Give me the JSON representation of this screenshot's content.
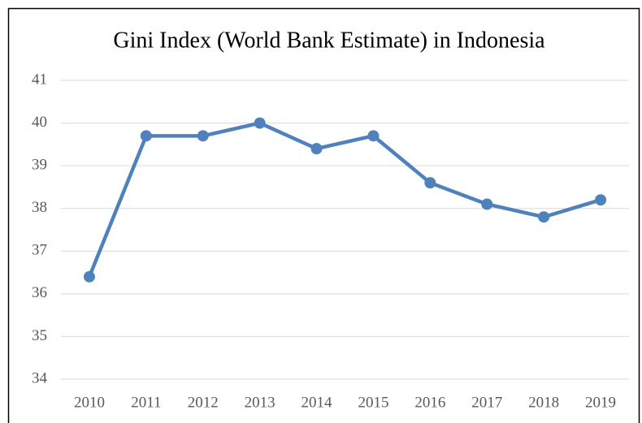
{
  "chart_data": {
    "type": "line",
    "title": "Gini Index (World Bank Estimate) in Indonesia",
    "categories": [
      "2010",
      "2011",
      "2012",
      "2013",
      "2014",
      "2015",
      "2016",
      "2017",
      "2018",
      "2019"
    ],
    "series": [
      {
        "name": "Gini Index",
        "color": "#4f81bd",
        "values": [
          36.4,
          39.7,
          39.7,
          40.0,
          39.4,
          39.7,
          38.6,
          38.1,
          37.8,
          38.2
        ]
      }
    ],
    "ylim": [
      34,
      41
    ],
    "yticks": [
      34,
      35,
      36,
      37,
      38,
      39,
      40,
      41
    ],
    "grid": true
  }
}
